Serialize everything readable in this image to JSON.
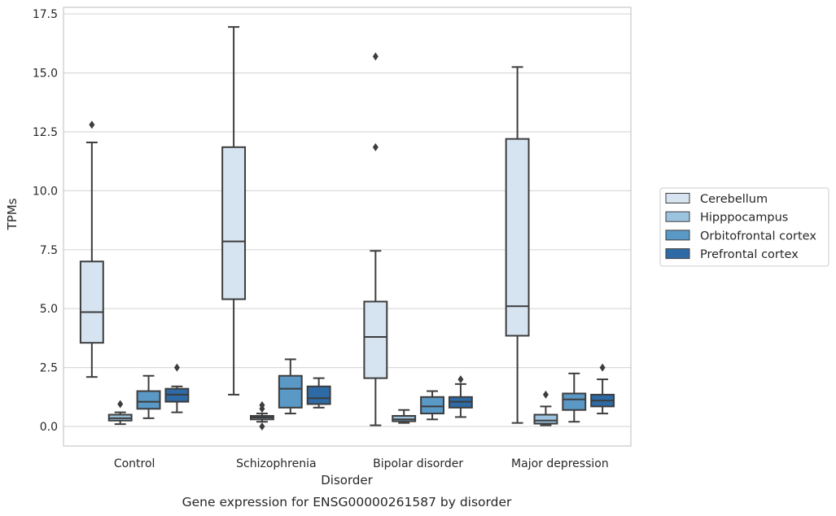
{
  "chart_data": {
    "type": "boxplot",
    "caption": "Gene expression for ENSG00000261587 by disorder",
    "xlabel": "Disorder",
    "ylabel": "TPMs",
    "ylim": [
      -0.8,
      17.7
    ],
    "yticks": [
      "0.0",
      "2.5",
      "5.0",
      "7.5",
      "10.0",
      "12.5",
      "15.0",
      "17.5"
    ],
    "categories": [
      "Control",
      "Schizophrenia",
      "Bipolar disorder",
      "Major depression"
    ],
    "grid": "horizontal",
    "legend_position": "right",
    "series": [
      {
        "name": "Cerebellum",
        "color": "#d6e4f2",
        "boxes": [
          {
            "whislo": 2.1,
            "q1": 3.55,
            "med": 4.85,
            "q3": 7.0,
            "whishi": 12.05,
            "fliers": [
              12.8
            ]
          },
          {
            "whislo": 1.35,
            "q1": 5.4,
            "med": 7.85,
            "q3": 11.85,
            "whishi": 16.95,
            "fliers": []
          },
          {
            "whislo": 0.05,
            "q1": 2.05,
            "med": 3.8,
            "q3": 5.3,
            "whishi": 7.45,
            "fliers": [
              11.85,
              15.7
            ]
          },
          {
            "whislo": 0.15,
            "q1": 3.85,
            "med": 5.1,
            "q3": 12.2,
            "whishi": 15.25,
            "fliers": []
          }
        ]
      },
      {
        "name": "Hipppocampus",
        "color": "#9cc3df",
        "boxes": [
          {
            "whislo": 0.1,
            "q1": 0.25,
            "med": 0.35,
            "q3": 0.5,
            "whishi": 0.6,
            "fliers": [
              0.95
            ]
          },
          {
            "whislo": 0.2,
            "q1": 0.3,
            "med": 0.38,
            "q3": 0.45,
            "whishi": 0.55,
            "fliers": [
              0.75,
              0.9,
              0.0
            ]
          },
          {
            "whislo": 0.15,
            "q1": 0.22,
            "med": 0.3,
            "q3": 0.45,
            "whishi": 0.7,
            "fliers": []
          },
          {
            "whislo": 0.05,
            "q1": 0.12,
            "med": 0.25,
            "q3": 0.5,
            "whishi": 0.85,
            "fliers": [
              1.35
            ]
          }
        ]
      },
      {
        "name": "Orbitofrontal cortex",
        "color": "#5a98c5",
        "boxes": [
          {
            "whislo": 0.35,
            "q1": 0.75,
            "med": 1.05,
            "q3": 1.5,
            "whishi": 2.15,
            "fliers": []
          },
          {
            "whislo": 0.55,
            "q1": 0.8,
            "med": 1.6,
            "q3": 2.15,
            "whishi": 2.85,
            "fliers": []
          },
          {
            "whislo": 0.3,
            "q1": 0.55,
            "med": 0.85,
            "q3": 1.25,
            "whishi": 1.5,
            "fliers": []
          },
          {
            "whislo": 0.2,
            "q1": 0.7,
            "med": 1.15,
            "q3": 1.4,
            "whishi": 2.25,
            "fliers": []
          }
        ]
      },
      {
        "name": "Prefrontal cortex",
        "color": "#2e6aa5",
        "boxes": [
          {
            "whislo": 0.6,
            "q1": 1.05,
            "med": 1.35,
            "q3": 1.6,
            "whishi": 1.7,
            "fliers": [
              2.5
            ]
          },
          {
            "whislo": 0.8,
            "q1": 0.95,
            "med": 1.2,
            "q3": 1.7,
            "whishi": 2.05,
            "fliers": []
          },
          {
            "whislo": 0.4,
            "q1": 0.8,
            "med": 1.05,
            "q3": 1.25,
            "whishi": 1.8,
            "fliers": [
              2.0
            ]
          },
          {
            "whislo": 0.55,
            "q1": 0.85,
            "med": 1.1,
            "q3": 1.35,
            "whishi": 2.0,
            "fliers": [
              2.5
            ]
          }
        ]
      }
    ]
  }
}
